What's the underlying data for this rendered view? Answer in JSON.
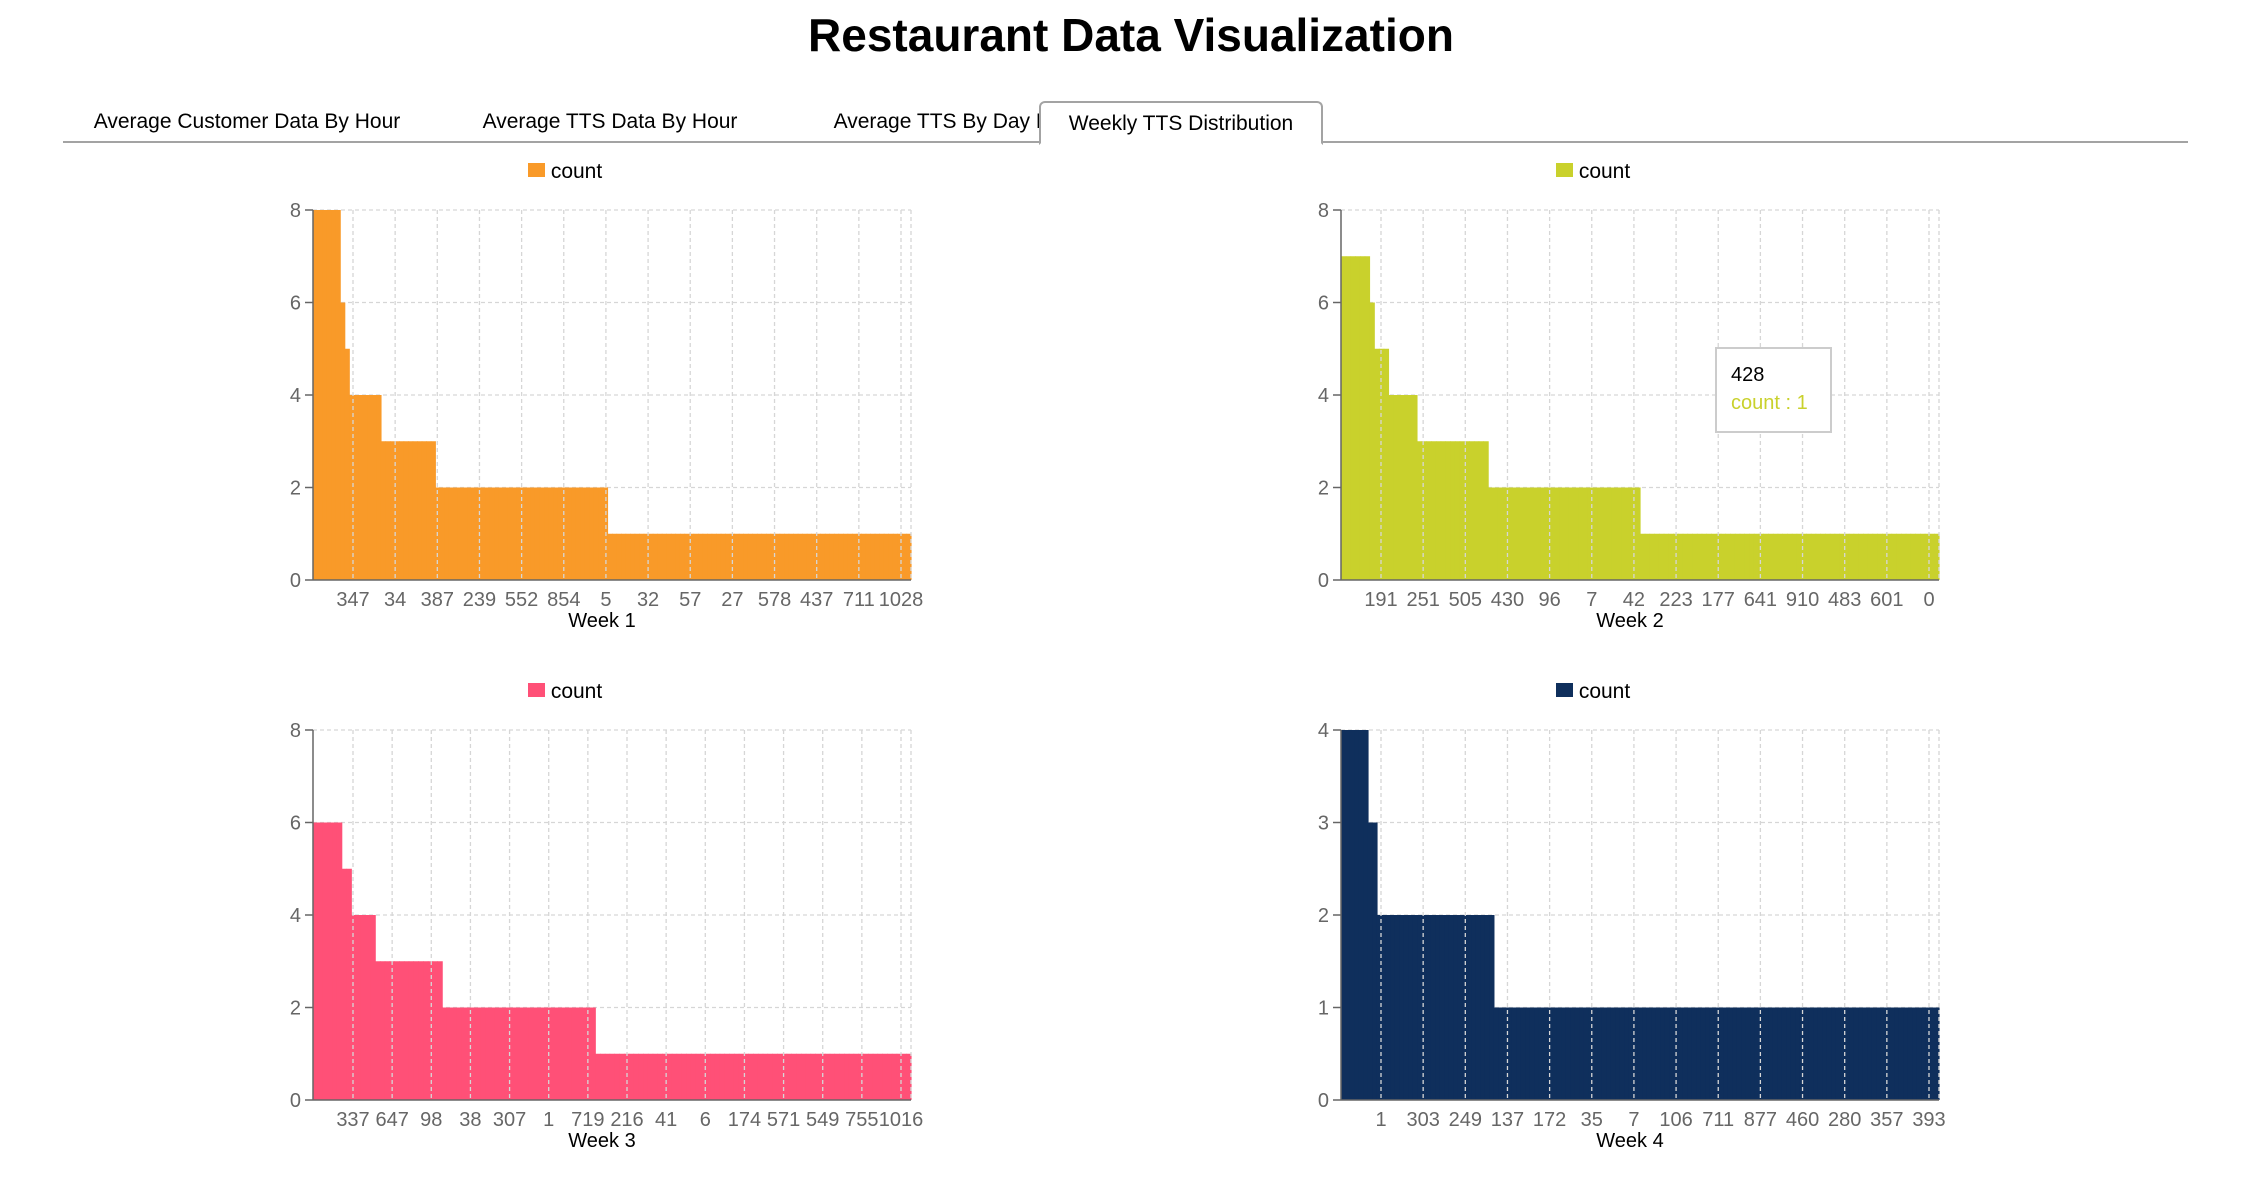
{
  "title": "Restaurant Data Visualization",
  "tabs": [
    {
      "label": "Average Customer Data By Hour",
      "active": false
    },
    {
      "label": "Average TTS Data By Hour",
      "active": false
    },
    {
      "label": "Average TTS By Day Part",
      "active": false
    },
    {
      "label": "Weekly TTS Distribution",
      "active": true
    }
  ],
  "tooltip": {
    "label": "428",
    "value_text": "count : 1",
    "color": "#c9d12c"
  },
  "chart_data": [
    {
      "type": "bar",
      "xlabel": "Week 1",
      "legend": "count",
      "legend_position": "top-center",
      "color": "#f99a29",
      "ylim": [
        0,
        8
      ],
      "yticks": [
        0,
        2,
        4,
        6,
        8
      ],
      "grid": true,
      "x_tick_labels": [
        "347",
        "34",
        "387",
        "239",
        "552",
        "854",
        "5",
        "32",
        "57",
        "27",
        "578",
        "437",
        "711",
        "1028"
      ],
      "values": [
        8,
        8,
        8,
        8,
        8,
        8,
        6,
        5,
        4,
        4,
        4,
        4,
        4,
        4,
        4,
        3,
        3,
        3,
        3,
        3,
        3,
        3,
        3,
        3,
        3,
        3,
        3,
        2,
        2,
        2,
        2,
        2,
        2,
        2,
        2,
        2,
        2,
        2,
        2,
        2,
        2,
        2,
        2,
        2,
        2,
        2,
        2,
        2,
        2,
        2,
        2,
        2,
        2,
        2,
        2,
        2,
        2,
        2,
        2,
        2,
        2,
        2,
        2,
        2,
        2,
        1,
        1,
        1,
        1,
        1,
        1,
        1,
        1,
        1,
        1,
        1,
        1,
        1,
        1,
        1,
        1,
        1,
        1,
        1,
        1,
        1,
        1,
        1,
        1,
        1,
        1,
        1,
        1,
        1,
        1,
        1,
        1,
        1,
        1,
        1,
        1,
        1,
        1,
        1,
        1,
        1,
        1,
        1,
        1,
        1,
        1,
        1,
        1,
        1,
        1,
        1,
        1,
        1,
        1,
        1,
        1,
        1,
        1,
        1,
        1,
        1,
        1,
        1,
        1,
        1,
        1,
        1
      ]
    },
    {
      "type": "bar",
      "xlabel": "Week 2",
      "legend": "count",
      "legend_position": "top-center",
      "color": "#c9d12c",
      "ylim": [
        0,
        8
      ],
      "yticks": [
        0,
        2,
        4,
        6,
        8
      ],
      "grid": true,
      "x_tick_labels": [
        "191",
        "251",
        "505",
        "430",
        "96",
        "7",
        "42",
        "223",
        "177",
        "641",
        "910",
        "483",
        "601",
        "0"
      ],
      "values": [
        7,
        7,
        7,
        7,
        7,
        7,
        6,
        5,
        5,
        5,
        4,
        4,
        4,
        4,
        4,
        4,
        3,
        3,
        3,
        3,
        3,
        3,
        3,
        3,
        3,
        3,
        3,
        3,
        3,
        3,
        3,
        2,
        2,
        2,
        2,
        2,
        2,
        2,
        2,
        2,
        2,
        2,
        2,
        2,
        2,
        2,
        2,
        2,
        2,
        2,
        2,
        2,
        2,
        2,
        2,
        2,
        2,
        2,
        2,
        2,
        2,
        2,
        2,
        1,
        1,
        1,
        1,
        1,
        1,
        1,
        1,
        1,
        1,
        1,
        1,
        1,
        1,
        1,
        1,
        1,
        1,
        1,
        1,
        1,
        1,
        1,
        1,
        1,
        1,
        1,
        1,
        1,
        1,
        1,
        1,
        1,
        1,
        1,
        1,
        1,
        1,
        1,
        1,
        1,
        1,
        1,
        1,
        1,
        1,
        1,
        1,
        1,
        1,
        1,
        1,
        1,
        1,
        1,
        1,
        1,
        1,
        1,
        1,
        1,
        1,
        1
      ]
    },
    {
      "type": "bar",
      "xlabel": "Week 3",
      "legend": "count",
      "legend_position": "top-center",
      "color": "#ff5077",
      "ylim": [
        0,
        8
      ],
      "yticks": [
        0,
        2,
        4,
        6,
        8
      ],
      "grid": true,
      "x_tick_labels": [
        "337",
        "647",
        "98",
        "38",
        "307",
        "1",
        "719",
        "216",
        "41",
        "6",
        "174",
        "571",
        "549",
        "755",
        "1016"
      ],
      "values": [
        6,
        6,
        6,
        6,
        6,
        6,
        5,
        5,
        4,
        4,
        4,
        4,
        4,
        3,
        3,
        3,
        3,
        3,
        3,
        3,
        3,
        3,
        3,
        3,
        3,
        3,
        3,
        2,
        2,
        2,
        2,
        2,
        2,
        2,
        2,
        2,
        2,
        2,
        2,
        2,
        2,
        2,
        2,
        2,
        2,
        2,
        2,
        2,
        2,
        2,
        2,
        2,
        2,
        2,
        2,
        2,
        2,
        2,
        2,
        1,
        1,
        1,
        1,
        1,
        1,
        1,
        1,
        1,
        1,
        1,
        1,
        1,
        1,
        1,
        1,
        1,
        1,
        1,
        1,
        1,
        1,
        1,
        1,
        1,
        1,
        1,
        1,
        1,
        1,
        1,
        1,
        1,
        1,
        1,
        1,
        1,
        1,
        1,
        1,
        1,
        1,
        1,
        1,
        1,
        1,
        1,
        1,
        1,
        1,
        1,
        1,
        1,
        1,
        1,
        1,
        1,
        1,
        1,
        1,
        1,
        1,
        1,
        1,
        1,
        1
      ]
    },
    {
      "type": "bar",
      "xlabel": "Week 4",
      "legend": "count",
      "legend_position": "top-center",
      "color": "#0f2f5c",
      "ylim": [
        0,
        4
      ],
      "yticks": [
        0,
        1,
        2,
        3,
        4
      ],
      "grid": true,
      "x_tick_labels": [
        "1",
        "303",
        "249",
        "137",
        "172",
        "35",
        "7",
        "106",
        "711",
        "877",
        "460",
        "280",
        "357",
        "393"
      ],
      "values": [
        4,
        4,
        4,
        4,
        4,
        4,
        3,
        3,
        2,
        2,
        2,
        2,
        2,
        2,
        2,
        2,
        2,
        2,
        2,
        2,
        2,
        2,
        2,
        2,
        2,
        2,
        2,
        2,
        2,
        2,
        2,
        2,
        2,
        2,
        1,
        1,
        1,
        1,
        1,
        1,
        1,
        1,
        1,
        1,
        1,
        1,
        1,
        1,
        1,
        1,
        1,
        1,
        1,
        1,
        1,
        1,
        1,
        1,
        1,
        1,
        1,
        1,
        1,
        1,
        1,
        1,
        1,
        1,
        1,
        1,
        1,
        1,
        1,
        1,
        1,
        1,
        1,
        1,
        1,
        1,
        1,
        1,
        1,
        1,
        1,
        1,
        1,
        1,
        1,
        1,
        1,
        1,
        1,
        1,
        1,
        1,
        1,
        1,
        1,
        1,
        1,
        1,
        1,
        1,
        1,
        1,
        1,
        1,
        1,
        1,
        1,
        1,
        1,
        1,
        1,
        1,
        1,
        1,
        1,
        1,
        1,
        1,
        1,
        1,
        1,
        1,
        1,
        1,
        1,
        1,
        1,
        1,
        1
      ]
    }
  ]
}
